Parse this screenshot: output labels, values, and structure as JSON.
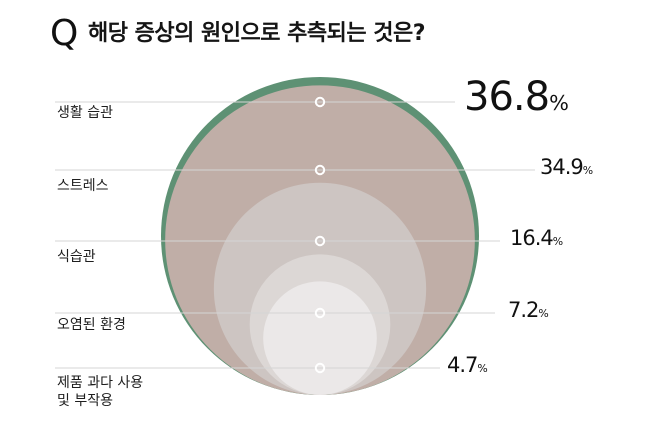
{
  "question": {
    "prefix": "Q",
    "text": "해당 증상의 원인으로 추측되는 것은?"
  },
  "chart_data": {
    "type": "bubble",
    "title": "해당 증상의 원인으로 추측되는 것은?",
    "unit": "%",
    "categories": [
      "생활 습관",
      "스트레스",
      "식습관",
      "오염된 환경",
      "제품 과다 사용\n및 부작용"
    ],
    "values": [
      36.8,
      34.9,
      16.4,
      7.2,
      4.7
    ],
    "value_labels": [
      "36.8",
      "34.9",
      "16.4",
      "7.2",
      "4.7"
    ],
    "colors": [
      "#5e9174",
      "#c0aea7",
      "#cdc5c2",
      "#dcd7d5",
      "#ebe8e8"
    ]
  }
}
